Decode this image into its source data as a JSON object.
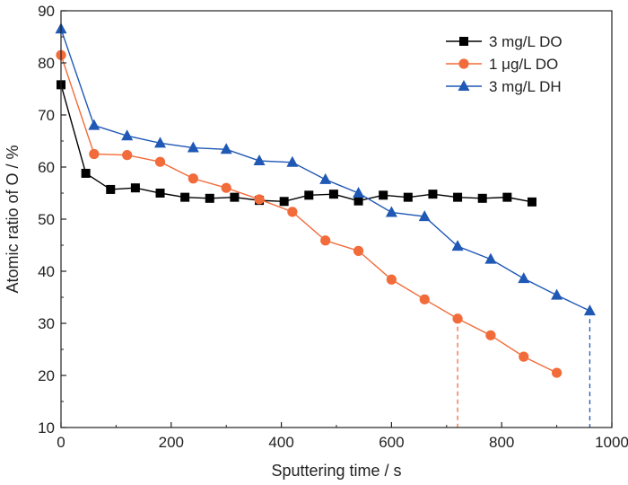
{
  "chart_data": {
    "type": "line",
    "title": "",
    "xlabel": "Sputtering time / s",
    "ylabel": "Atomic ratio of O / %",
    "xlim": [
      0,
      1000
    ],
    "ylim": [
      10,
      90
    ],
    "xticks": [
      "0",
      "200",
      "400",
      "600",
      "800",
      "1000"
    ],
    "yticks": [
      "10",
      "20",
      "30",
      "40",
      "50",
      "60",
      "70",
      "80",
      "90"
    ],
    "grid": false,
    "legend_position": "top-right",
    "series": [
      {
        "name": "3 mg/L DO",
        "marker": "square",
        "color": "#000000",
        "x": [
          0,
          45,
          90,
          135,
          180,
          225,
          270,
          315,
          360,
          405,
          450,
          495,
          540,
          585,
          630,
          675,
          720,
          765,
          810,
          855
        ],
        "y": [
          75.8,
          58.8,
          55.7,
          56.0,
          55.0,
          54.2,
          54.0,
          54.2,
          53.6,
          53.4,
          54.6,
          54.8,
          53.5,
          54.6,
          54.2,
          54.8,
          54.2,
          54.0,
          54.2,
          53.3
        ]
      },
      {
        "name": "1 μg/L DO",
        "marker": "circle",
        "color": "#F26B3A",
        "x": [
          0,
          60,
          120,
          180,
          240,
          300,
          360,
          420,
          480,
          540,
          600,
          660,
          720,
          780,
          840,
          900
        ],
        "y": [
          81.5,
          62.5,
          62.3,
          61.0,
          57.8,
          56.0,
          53.8,
          51.4,
          45.9,
          43.9,
          38.4,
          34.6,
          30.9,
          27.7,
          23.6,
          20.5
        ]
      },
      {
        "name": "3 mg/L DH",
        "marker": "triangle",
        "color": "#1F58B5",
        "x": [
          0,
          60,
          120,
          180,
          240,
          300,
          360,
          420,
          480,
          540,
          600,
          660,
          720,
          780,
          840,
          900,
          960
        ],
        "y": [
          86.5,
          68.0,
          66.0,
          64.6,
          63.7,
          63.4,
          61.2,
          60.9,
          57.6,
          55.0,
          51.3,
          50.5,
          44.8,
          42.3,
          38.6,
          35.4,
          32.4
        ]
      }
    ],
    "reference_lines": [
      {
        "x": 720,
        "y": 30.9,
        "color": "#F26B3A",
        "style": "dashed"
      },
      {
        "x": 960,
        "y": 32.4,
        "color": "#1F58B5",
        "style": "dashed"
      }
    ]
  }
}
